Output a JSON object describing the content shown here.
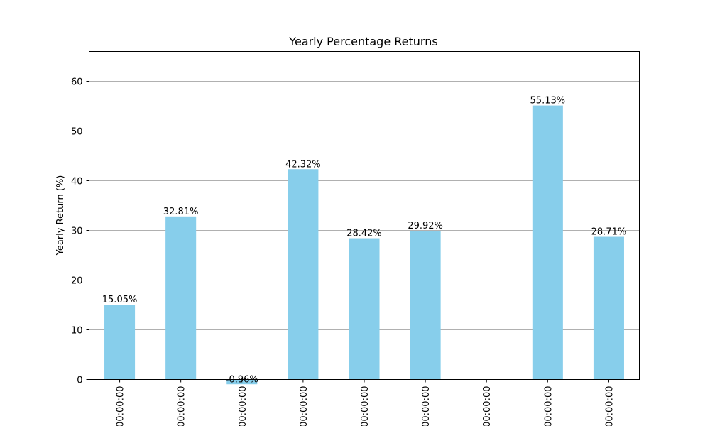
{
  "chart_data": {
    "type": "bar",
    "title": "Yearly Percentage Returns",
    "xlabel": "",
    "ylabel": "Yearly Return (%)",
    "ylim": [
      0,
      66
    ],
    "yticks": [
      0,
      10,
      20,
      30,
      40,
      50,
      60
    ],
    "grid": "y-axis horizontal lines",
    "categories": [
      "00:00:00",
      "00:00:00",
      "00:00:00",
      "00:00:00",
      "00:00:00",
      "00:00:00",
      "00:00:00",
      "00:00:00",
      "00:00:00"
    ],
    "values": [
      15.05,
      32.81,
      -0.96,
      42.32,
      28.42,
      29.92,
      null,
      55.13,
      28.71
    ],
    "data_labels": [
      "15.05%",
      "32.81%",
      "-0.96%",
      "42.32%",
      "28.42%",
      "29.92%",
      "",
      "55.13%",
      "28.71%"
    ],
    "bar_color": "#87ceeb"
  }
}
